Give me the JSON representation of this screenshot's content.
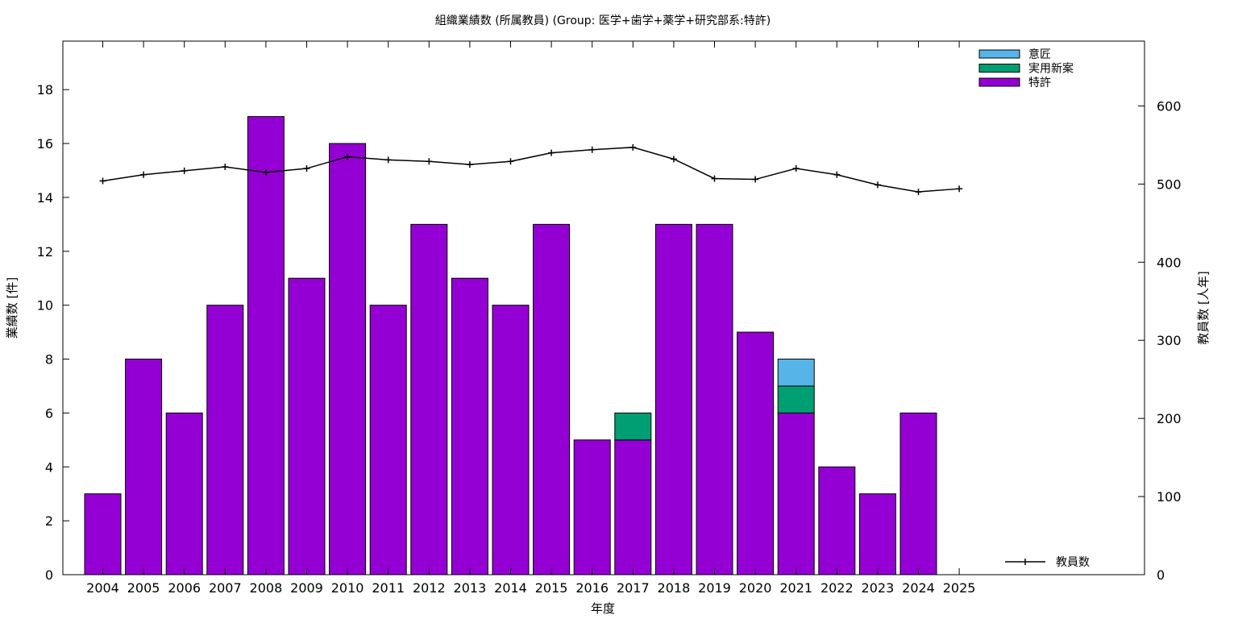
{
  "chart_data": {
    "type": "bar",
    "title": "組織業績数 (所属教員) (Group: 医学+歯学+薬学+研究部系:特許)",
    "xlabel": "年度",
    "ylabel": "業績数 [件]",
    "y2label": "教員数 [人年]",
    "stacked": true,
    "categories": [
      "2004",
      "2005",
      "2006",
      "2007",
      "2008",
      "2009",
      "2010",
      "2011",
      "2012",
      "2013",
      "2014",
      "2015",
      "2016",
      "2017",
      "2018",
      "2019",
      "2020",
      "2021",
      "2022",
      "2023",
      "2024",
      "2025"
    ],
    "ylim": [
      0,
      19.8
    ],
    "y2lim": [
      0,
      683
    ],
    "yticks": [
      0,
      2,
      4,
      6,
      8,
      10,
      12,
      14,
      16,
      18
    ],
    "y2ticks": [
      0,
      100,
      200,
      300,
      400,
      500,
      600
    ],
    "series": [
      {
        "name": "特許",
        "color": "#9400d3",
        "values": [
          3,
          8,
          6,
          10,
          17,
          11,
          16,
          10,
          13,
          11,
          10,
          13,
          5,
          5,
          13,
          13,
          9,
          6,
          4,
          3,
          6,
          0
        ]
      },
      {
        "name": "実用新案",
        "color": "#009e73",
        "values": [
          0,
          0,
          0,
          0,
          0,
          0,
          0,
          0,
          0,
          0,
          0,
          0,
          0,
          1,
          0,
          0,
          0,
          1,
          0,
          0,
          0,
          0
        ]
      },
      {
        "name": "意匠",
        "color": "#56b4e9",
        "values": [
          0,
          0,
          0,
          0,
          0,
          0,
          0,
          0,
          0,
          0,
          0,
          0,
          0,
          0,
          0,
          0,
          0,
          1,
          0,
          0,
          0,
          0
        ]
      }
    ],
    "line_series": {
      "name": "教員数",
      "color": "#000000",
      "axis": "y2",
      "values": [
        504,
        512,
        517,
        522,
        515,
        520,
        535,
        531,
        529,
        525,
        529,
        540,
        544,
        547,
        532,
        507,
        506,
        520,
        512,
        499,
        490,
        494
      ]
    },
    "grid": false,
    "legend": {
      "bars": "top-right",
      "line": "bottom-right"
    }
  }
}
